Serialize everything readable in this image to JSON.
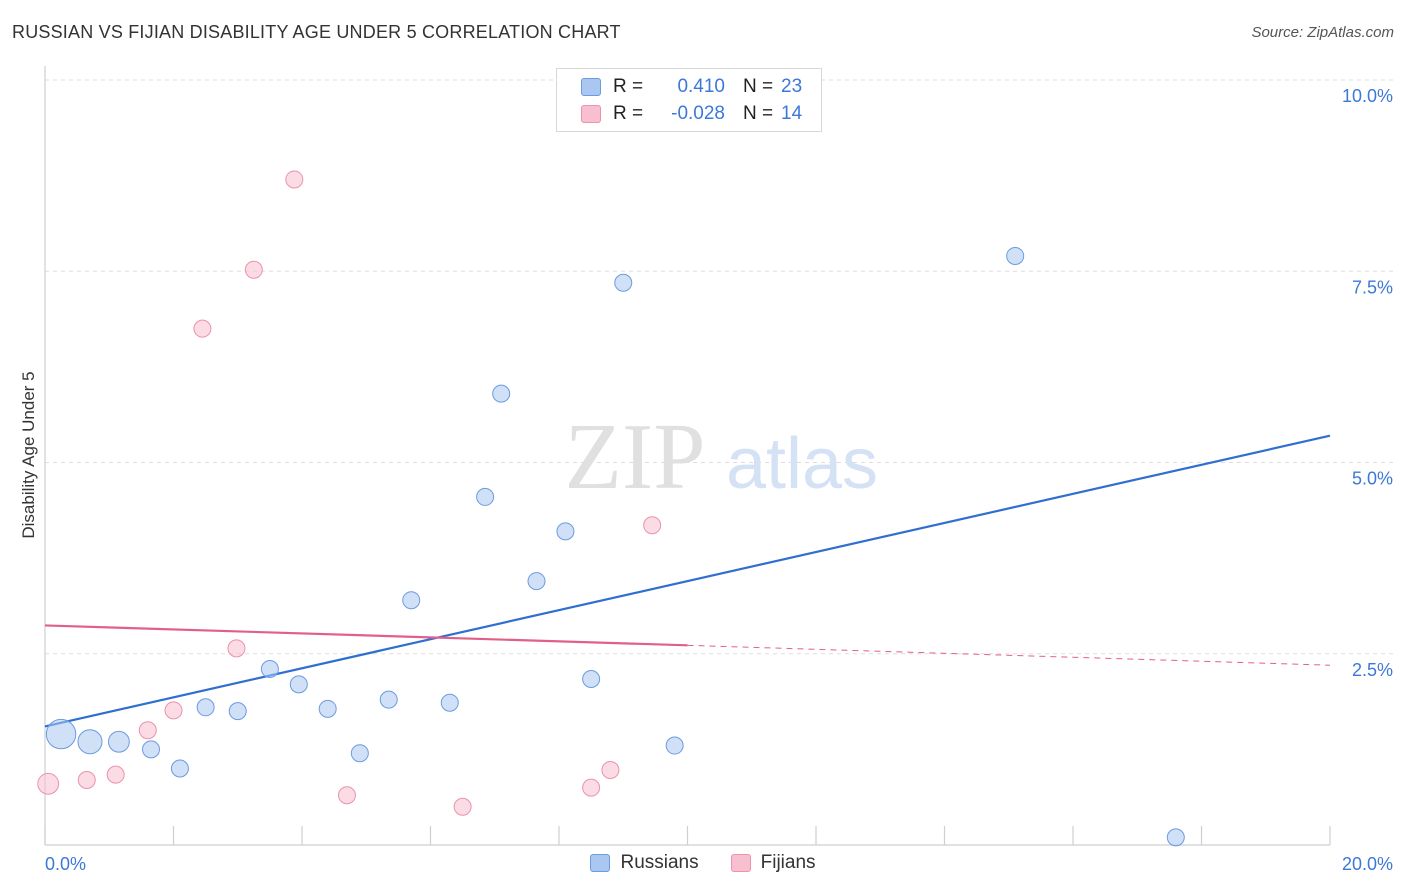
{
  "title": "RUSSIAN VS FIJIAN DISABILITY AGE UNDER 5 CORRELATION CHART",
  "source": "Source: ZipAtlas.com",
  "watermark": {
    "zip": "ZIP",
    "atlas": "atlas"
  },
  "legend": {
    "series": [
      {
        "r_label": "R =",
        "r_value": "0.410",
        "n_label": "N =",
        "n_value": "23"
      },
      {
        "r_label": "R =",
        "r_value": "-0.028",
        "n_label": "N =",
        "n_value": "14"
      }
    ]
  },
  "colors": {
    "russians_fill": "#a9c7f0",
    "russians_stroke": "#6b9be0",
    "russians_line": "#2f6fd0",
    "fijians_fill": "#f7bfd0",
    "fijians_stroke": "#eb92ad",
    "fijians_line": "#e0608a",
    "axis_label": "#3c78d8",
    "grid": "#dddddd"
  },
  "chart_data": {
    "type": "scatter",
    "title": "RUSSIAN VS FIJIAN DISABILITY AGE UNDER 5 CORRELATION CHART",
    "xlabel": "",
    "ylabel": "Disability Age Under 5",
    "xlim": [
      0,
      20
    ],
    "ylim": [
      0,
      10
    ],
    "x_tick_labels": [
      "0.0%",
      "20.0%"
    ],
    "y_ticks": [
      2.5,
      5.0,
      7.5,
      10.0
    ],
    "y_tick_labels": [
      "2.5%",
      "5.0%",
      "7.5%",
      "10.0%"
    ],
    "grid": true,
    "legend_position": "bottom-center",
    "series": [
      {
        "name": "Russians",
        "points": [
          {
            "x": 0.25,
            "y": 1.45,
            "size": 3
          },
          {
            "x": 0.7,
            "y": 1.35,
            "size": 2
          },
          {
            "x": 1.15,
            "y": 1.35,
            "size": 1.5
          },
          {
            "x": 1.65,
            "y": 1.25,
            "size": 1
          },
          {
            "x": 2.1,
            "y": 1.0,
            "size": 1
          },
          {
            "x": 2.5,
            "y": 1.8,
            "size": 1
          },
          {
            "x": 3.0,
            "y": 1.75,
            "size": 1
          },
          {
            "x": 3.5,
            "y": 2.3,
            "size": 1
          },
          {
            "x": 3.95,
            "y": 2.1,
            "size": 1
          },
          {
            "x": 4.4,
            "y": 1.78,
            "size": 1
          },
          {
            "x": 4.9,
            "y": 1.2,
            "size": 1
          },
          {
            "x": 5.35,
            "y": 1.9,
            "size": 1
          },
          {
            "x": 5.7,
            "y": 3.2,
            "size": 1
          },
          {
            "x": 6.3,
            "y": 1.86,
            "size": 1
          },
          {
            "x": 6.85,
            "y": 4.55,
            "size": 1
          },
          {
            "x": 7.1,
            "y": 5.9,
            "size": 1
          },
          {
            "x": 7.65,
            "y": 3.45,
            "size": 1
          },
          {
            "x": 8.1,
            "y": 4.1,
            "size": 1
          },
          {
            "x": 8.5,
            "y": 2.17,
            "size": 1
          },
          {
            "x": 9.0,
            "y": 7.35,
            "size": 1
          },
          {
            "x": 9.8,
            "y": 1.3,
            "size": 1
          },
          {
            "x": 15.1,
            "y": 7.7,
            "size": 1
          },
          {
            "x": 17.6,
            "y": 0.1,
            "size": 1
          }
        ],
        "trend": {
          "x0": 0.0,
          "y0": 1.55,
          "x1": 20.0,
          "y1": 5.35
        }
      },
      {
        "name": "Fijians",
        "points": [
          {
            "x": 0.05,
            "y": 0.8,
            "size": 1.5
          },
          {
            "x": 0.65,
            "y": 0.85,
            "size": 1
          },
          {
            "x": 1.1,
            "y": 0.92,
            "size": 1
          },
          {
            "x": 1.6,
            "y": 1.5,
            "size": 1
          },
          {
            "x": 2.0,
            "y": 1.76,
            "size": 1
          },
          {
            "x": 2.45,
            "y": 6.75,
            "size": 1
          },
          {
            "x": 2.98,
            "y": 2.57,
            "size": 1
          },
          {
            "x": 3.25,
            "y": 7.52,
            "size": 1
          },
          {
            "x": 3.88,
            "y": 8.7,
            "size": 1
          },
          {
            "x": 4.7,
            "y": 0.65,
            "size": 1
          },
          {
            "x": 6.5,
            "y": 0.5,
            "size": 1
          },
          {
            "x": 8.5,
            "y": 0.75,
            "size": 1
          },
          {
            "x": 8.8,
            "y": 0.98,
            "size": 1
          },
          {
            "x": 9.45,
            "y": 4.18,
            "size": 1
          }
        ],
        "trend": {
          "x0": 0.0,
          "y0": 2.87,
          "x1": 20.0,
          "y1": 2.35,
          "solid_until_x": 10.0
        }
      }
    ]
  }
}
